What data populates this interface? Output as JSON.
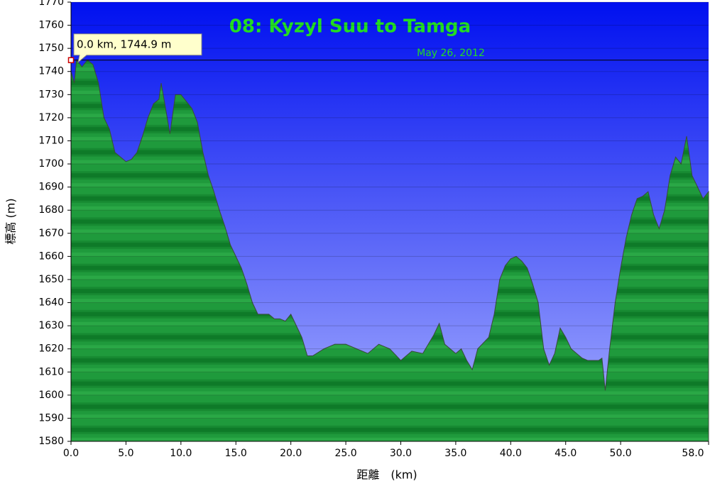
{
  "chart_data": {
    "type": "area",
    "title": "08: Kyzyl Suu to Tamga",
    "subtitle": "May 26, 2012",
    "x_label": "距離　(km)",
    "y_label": "標高 (m)",
    "xlim": [
      0,
      58
    ],
    "ylim": [
      1580,
      1770
    ],
    "xticks": [
      {
        "value": 0,
        "label": "0.0"
      },
      {
        "value": 5,
        "label": "5.0"
      },
      {
        "value": 10,
        "label": "10.0"
      },
      {
        "value": 15,
        "label": "15.0"
      },
      {
        "value": 20,
        "label": "20.0"
      },
      {
        "value": 25,
        "label": "25.0"
      },
      {
        "value": 30,
        "label": "30.0"
      },
      {
        "value": 35,
        "label": "35.0"
      },
      {
        "value": 40,
        "label": "40.0"
      },
      {
        "value": 45,
        "label": "45.0"
      },
      {
        "value": 50,
        "label": "50.0"
      },
      {
        "value": 58,
        "label": "58.0"
      }
    ],
    "yticks": [
      1580,
      1590,
      1600,
      1610,
      1620,
      1630,
      1640,
      1650,
      1660,
      1670,
      1680,
      1690,
      1700,
      1710,
      1720,
      1730,
      1740,
      1750,
      1760,
      1770
    ],
    "grid": true,
    "x": [
      0,
      0.3,
      0.5,
      1,
      1.5,
      2,
      2.5,
      3,
      3.5,
      4,
      4.5,
      5,
      5.5,
      6,
      6.5,
      7,
      7.5,
      8,
      8.2,
      8.5,
      9,
      9.5,
      10,
      10.5,
      11,
      11.5,
      12,
      12.5,
      13,
      13.5,
      14,
      14.5,
      15,
      15.5,
      16,
      16.5,
      17,
      18,
      18.5,
      19,
      19.5,
      20,
      20.5,
      21,
      21.5,
      22,
      23,
      24,
      25,
      26,
      27,
      28,
      29,
      30,
      31,
      32,
      33,
      33.5,
      34,
      35,
      35.5,
      36,
      36.5,
      37,
      38,
      38.5,
      39,
      39.5,
      40,
      40.5,
      41,
      41.5,
      42,
      42.5,
      43,
      43.5,
      44,
      44.5,
      45,
      45.5,
      46,
      46.5,
      47,
      48,
      48.3,
      48.6,
      49,
      49.5,
      50,
      50.5,
      51,
      51.5,
      52,
      52.5,
      53,
      53.5,
      54,
      54.5,
      55,
      55.5,
      56,
      56.5,
      57,
      57.5,
      58
    ],
    "series": [
      {
        "name": "elevation",
        "color": "#1e9a3a",
        "values": [
          1740,
          1735,
          1745,
          1742,
          1745,
          1743,
          1735,
          1720,
          1715,
          1705,
          1703,
          1701,
          1702,
          1705,
          1712,
          1720,
          1726,
          1728,
          1735,
          1727,
          1713,
          1730,
          1730,
          1727,
          1724,
          1718,
          1705,
          1695,
          1688,
          1680,
          1673,
          1665,
          1660,
          1655,
          1648,
          1640,
          1635,
          1635,
          1633,
          1633,
          1632,
          1635,
          1630,
          1625,
          1617,
          1617,
          1620,
          1622,
          1622,
          1620,
          1618,
          1622,
          1620,
          1615,
          1619,
          1618,
          1626,
          1631,
          1622,
          1618,
          1620,
          1615,
          1611,
          1620,
          1625,
          1635,
          1650,
          1656,
          1659,
          1660,
          1658,
          1655,
          1648,
          1640,
          1620,
          1613,
          1618,
          1629,
          1625,
          1620,
          1618,
          1616,
          1615,
          1615,
          1616,
          1602,
          1620,
          1640,
          1655,
          1668,
          1678,
          1685,
          1686,
          1688,
          1678,
          1672,
          1680,
          1695,
          1703,
          1700,
          1712,
          1695,
          1690,
          1685,
          1688
        ]
      }
    ],
    "crosshair": {
      "x": 0,
      "y": 1744.9,
      "label": "0.0 km, 1744.9 m"
    }
  }
}
